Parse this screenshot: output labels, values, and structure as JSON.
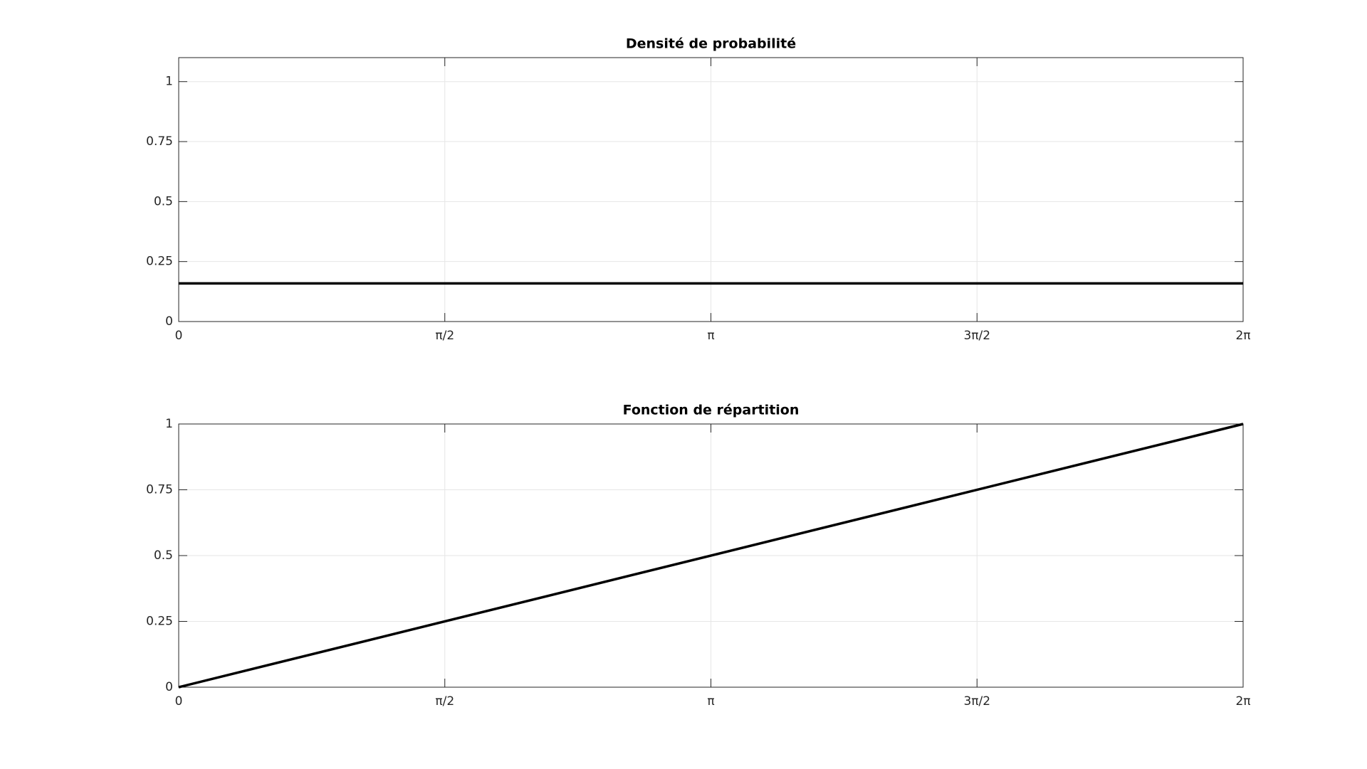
{
  "chart_data": [
    {
      "type": "line",
      "title": "Densité de probabilité",
      "x": [
        0,
        6.2832
      ],
      "values": [
        0.159,
        0.159
      ],
      "color": "#000000",
      "xlim": [
        0,
        6.2832
      ],
      "ylim": [
        0,
        1.1
      ],
      "xticks": [
        0,
        {
          "value": 1.5708,
          "label": "π/2"
        },
        {
          "value": 3.1416,
          "label": "π"
        },
        {
          "value": 4.7124,
          "label": "3π/2"
        },
        {
          "value": 6.2832,
          "label": "2π"
        }
      ],
      "yticks": [
        0,
        0.25,
        0.5,
        0.75,
        1
      ],
      "grid": true
    },
    {
      "type": "line",
      "title": "Fonction de répartition",
      "x": [
        0,
        6.2832
      ],
      "values": [
        0,
        1
      ],
      "color": "#000000",
      "xlim": [
        0,
        6.2832
      ],
      "ylim": [
        0,
        1
      ],
      "xticks": [
        0,
        {
          "value": 1.5708,
          "label": "π/2"
        },
        {
          "value": 3.1416,
          "label": "π"
        },
        {
          "value": 4.7124,
          "label": "3π/2"
        },
        {
          "value": 6.2832,
          "label": "2π"
        }
      ],
      "yticks": [
        0,
        0.25,
        0.5,
        0.75,
        1
      ],
      "grid": true
    }
  ]
}
